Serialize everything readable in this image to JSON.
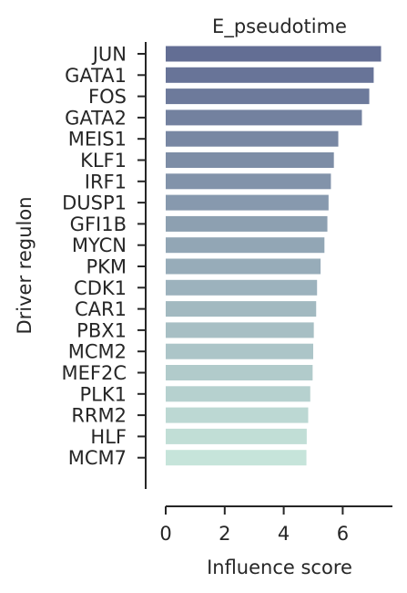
{
  "chart_data": {
    "type": "bar",
    "orientation": "horizontal",
    "title": "E_pseudotime",
    "xlabel": "Influence score",
    "ylabel": "Driver regulon",
    "categories": [
      "JUN",
      "GATA1",
      "FOS",
      "GATA2",
      "MEIS1",
      "KLF1",
      "IRF1",
      "DUSP1",
      "GFI1B",
      "MYCN",
      "PKM",
      "CDK1",
      "CAR1",
      "PBX1",
      "MCM2",
      "MEF2C",
      "PLK1",
      "RRM2",
      "HLF",
      "MCM7"
    ],
    "values": [
      7.3,
      7.05,
      6.9,
      6.65,
      5.85,
      5.7,
      5.6,
      5.52,
      5.48,
      5.38,
      5.25,
      5.13,
      5.1,
      5.02,
      5.0,
      4.98,
      4.9,
      4.83,
      4.78,
      4.77
    ],
    "xlim": [
      0,
      7.7
    ],
    "xticks": [
      "0",
      "2",
      "4",
      "6"
    ],
    "grid": false,
    "legend": "none",
    "colors": {
      "bar_start": "#636e94",
      "bar_end": "#c6e4da",
      "axis": "#262626",
      "text": "#262626"
    }
  }
}
